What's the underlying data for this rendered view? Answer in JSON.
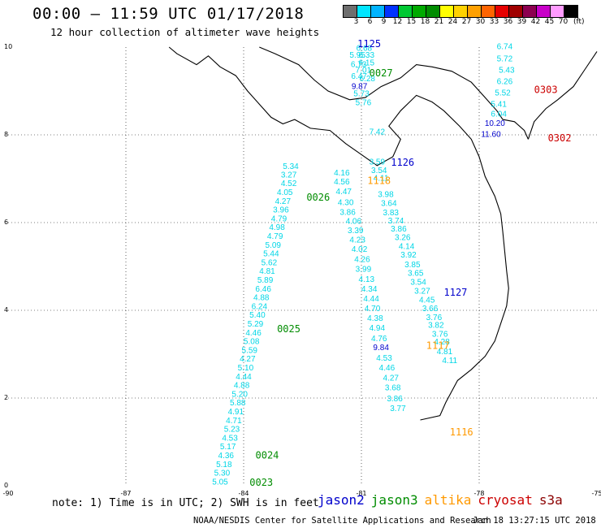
{
  "header": {
    "title": "00:00 — 11:59 UTC 01/17/2018",
    "subtitle": "12 hour collection of altimeter wave heights"
  },
  "scale": {
    "unit": "(ft)",
    "labels": [
      "3",
      "6",
      "9",
      "12",
      "15",
      "18",
      "21",
      "24",
      "27",
      "30",
      "33",
      "36",
      "39",
      "42",
      "45",
      "70"
    ],
    "colors": [
      "#6e6e6e",
      "#00e5ff",
      "#00b4ff",
      "#0032ff",
      "#00c832",
      "#00aa00",
      "#008c00",
      "#ffff00",
      "#ffd200",
      "#ffa000",
      "#ff6400",
      "#e60000",
      "#a00000",
      "#8c0050",
      "#c800c8",
      "#ff9bff",
      "#000000"
    ]
  },
  "axes": {
    "x_ticks": [
      "-90",
      "-87",
      "-84",
      "-81",
      "-78",
      "-75"
    ],
    "y_ticks": [
      "0",
      "2",
      "4",
      "6",
      "8",
      "10"
    ],
    "x_range": [
      -90,
      -75
    ],
    "y_range": [
      0,
      10
    ]
  },
  "tracks": [
    {
      "id": "1125",
      "sat": "jason2",
      "label_lon": -81.1,
      "label_lat": 10.0
    },
    {
      "id": "0027",
      "sat": "jason3",
      "label_lon": -80.8,
      "label_lat": 9.33
    },
    {
      "id": "0303",
      "sat": "cryosat",
      "label_lon": -76.6,
      "label_lat": 8.95
    },
    {
      "id": "0302",
      "sat": "cryosat",
      "label_lon": -76.25,
      "label_lat": 7.85
    },
    {
      "id": "1126",
      "sat": "jason2",
      "label_lon": -80.25,
      "label_lat": 7.3
    },
    {
      "id": "1118",
      "sat": "altika",
      "label_lon": -80.85,
      "label_lat": 6.88
    },
    {
      "id": "0026",
      "sat": "jason3",
      "label_lon": -82.4,
      "label_lat": 6.5
    },
    {
      "id": "1127",
      "sat": "jason2",
      "label_lon": -78.9,
      "label_lat": 4.33
    },
    {
      "id": "0025",
      "sat": "jason3",
      "label_lon": -83.15,
      "label_lat": 3.5
    },
    {
      "id": "1117",
      "sat": "altika",
      "label_lon": -79.35,
      "label_lat": 3.12
    },
    {
      "id": "1116",
      "sat": "altika",
      "label_lon": -78.75,
      "label_lat": 1.15
    },
    {
      "id": "0024",
      "sat": "jason3",
      "label_lon": -83.7,
      "label_lat": 0.62
    },
    {
      "id": "0023",
      "sat": "jason3",
      "label_lon": -83.85,
      "label_lat": 0.0
    }
  ],
  "observations": [
    {
      "v": "6.68",
      "lon": -80.93,
      "lat": 9.92
    },
    {
      "v": "5.95",
      "lon": -81.1,
      "lat": 9.76
    },
    {
      "v": "6.33",
      "lon": -80.87,
      "lat": 9.76
    },
    {
      "v": "6.73",
      "lon": -81.07,
      "lat": 9.55
    },
    {
      "v": "6.15",
      "lon": -80.87,
      "lat": 9.58
    },
    {
      "v": "7.01",
      "lon": -80.95,
      "lat": 9.42
    },
    {
      "v": "6.47",
      "lon": -81.06,
      "lat": 9.28
    },
    {
      "v": "6.28",
      "lon": -80.85,
      "lat": 9.22
    },
    {
      "v": "9.87",
      "lon": -81.05,
      "lat": 9.05
    },
    {
      "v": "5.73",
      "lon": -81.0,
      "lat": 8.88
    },
    {
      "v": "5.76",
      "lon": -80.95,
      "lat": 8.68
    },
    {
      "v": "7.42",
      "lon": -80.6,
      "lat": 8.01
    },
    {
      "v": "6.74",
      "lon": -77.35,
      "lat": 9.95
    },
    {
      "v": "5.72",
      "lon": -77.35,
      "lat": 9.68
    },
    {
      "v": "5.43",
      "lon": -77.3,
      "lat": 9.42
    },
    {
      "v": "6.26",
      "lon": -77.35,
      "lat": 9.16
    },
    {
      "v": "5.52",
      "lon": -77.4,
      "lat": 8.9
    },
    {
      "v": "5.41",
      "lon": -77.5,
      "lat": 8.64
    },
    {
      "v": "6.04",
      "lon": -77.5,
      "lat": 8.42
    },
    {
      "v": "10.20",
      "lon": -77.6,
      "lat": 8.2
    },
    {
      "v": "11.60",
      "lon": -77.7,
      "lat": 7.95
    },
    {
      "v": "3.59",
      "lon": -80.6,
      "lat": 7.32
    },
    {
      "v": "3.54",
      "lon": -80.55,
      "lat": 7.13
    },
    {
      "v": "4.11",
      "lon": -80.5,
      "lat": 6.95
    },
    {
      "v": "3.98",
      "lon": -80.38,
      "lat": 6.58
    },
    {
      "v": "3.64",
      "lon": -80.3,
      "lat": 6.38
    },
    {
      "v": "3.83",
      "lon": -80.25,
      "lat": 6.17
    },
    {
      "v": "3.74",
      "lon": -80.12,
      "lat": 5.98
    },
    {
      "v": "3.86",
      "lon": -80.05,
      "lat": 5.8
    },
    {
      "v": "3.26",
      "lon": -79.95,
      "lat": 5.6
    },
    {
      "v": "4.14",
      "lon": -79.85,
      "lat": 5.4
    },
    {
      "v": "3.92",
      "lon": -79.8,
      "lat": 5.2
    },
    {
      "v": "3.85",
      "lon": -79.7,
      "lat": 4.98
    },
    {
      "v": "3.65",
      "lon": -79.62,
      "lat": 4.79
    },
    {
      "v": "3.54",
      "lon": -79.55,
      "lat": 4.58
    },
    {
      "v": "3.27",
      "lon": -79.45,
      "lat": 4.38
    },
    {
      "v": "4.45",
      "lon": -79.33,
      "lat": 4.18
    },
    {
      "v": "3.66",
      "lon": -79.25,
      "lat": 3.98
    },
    {
      "v": "3.76",
      "lon": -79.15,
      "lat": 3.78
    },
    {
      "v": "3.82",
      "lon": -79.1,
      "lat": 3.6
    },
    {
      "v": "3.76",
      "lon": -79.0,
      "lat": 3.4
    },
    {
      "v": "4.28",
      "lon": -78.95,
      "lat": 3.22
    },
    {
      "v": "4.81",
      "lon": -78.88,
      "lat": 3.0
    },
    {
      "v": "4.11",
      "lon": -78.75,
      "lat": 2.8
    },
    {
      "v": "4.16",
      "lon": -81.5,
      "lat": 7.07
    },
    {
      "v": "4.56",
      "lon": -81.5,
      "lat": 6.87
    },
    {
      "v": "4.47",
      "lon": -81.45,
      "lat": 6.65
    },
    {
      "v": "4.30",
      "lon": -81.4,
      "lat": 6.4
    },
    {
      "v": "3.86",
      "lon": -81.35,
      "lat": 6.18
    },
    {
      "v": "4.06",
      "lon": -81.2,
      "lat": 5.97
    },
    {
      "v": "3.39",
      "lon": -81.15,
      "lat": 5.76
    },
    {
      "v": "4.23",
      "lon": -81.1,
      "lat": 5.55
    },
    {
      "v": "4.02",
      "lon": -81.05,
      "lat": 5.33
    },
    {
      "v": "4.26",
      "lon": -80.98,
      "lat": 5.1
    },
    {
      "v": "3.99",
      "lon": -80.95,
      "lat": 4.88
    },
    {
      "v": "4.13",
      "lon": -80.87,
      "lat": 4.65
    },
    {
      "v": "4.34",
      "lon": -80.8,
      "lat": 4.43
    },
    {
      "v": "4.44",
      "lon": -80.75,
      "lat": 4.2
    },
    {
      "v": "4.70",
      "lon": -80.72,
      "lat": 3.98
    },
    {
      "v": "4.38",
      "lon": -80.65,
      "lat": 3.76
    },
    {
      "v": "4.94",
      "lon": -80.6,
      "lat": 3.54
    },
    {
      "v": "4.76",
      "lon": -80.55,
      "lat": 3.3
    },
    {
      "v": "9.84",
      "lon": -80.5,
      "lat": 3.09
    },
    {
      "v": "4.53",
      "lon": -80.42,
      "lat": 2.85
    },
    {
      "v": "4.46",
      "lon": -80.35,
      "lat": 2.63
    },
    {
      "v": "4.27",
      "lon": -80.25,
      "lat": 2.4
    },
    {
      "v": "3.68",
      "lon": -80.2,
      "lat": 2.18
    },
    {
      "v": "3.86",
      "lon": -80.15,
      "lat": 1.93
    },
    {
      "v": "3.77",
      "lon": -80.07,
      "lat": 1.7
    },
    {
      "v": "5.34",
      "lon": -82.8,
      "lat": 7.22
    },
    {
      "v": "3.27",
      "lon": -82.85,
      "lat": 7.03
    },
    {
      "v": "4.52",
      "lon": -82.85,
      "lat": 6.83
    },
    {
      "v": "4.05",
      "lon": -82.95,
      "lat": 6.63
    },
    {
      "v": "4.27",
      "lon": -83.0,
      "lat": 6.43
    },
    {
      "v": "3.96",
      "lon": -83.05,
      "lat": 6.23
    },
    {
      "v": "4.79",
      "lon": -83.1,
      "lat": 6.03
    },
    {
      "v": "4.98",
      "lon": -83.15,
      "lat": 5.83
    },
    {
      "v": "4.79",
      "lon": -83.2,
      "lat": 5.63
    },
    {
      "v": "5.09",
      "lon": -83.25,
      "lat": 5.43
    },
    {
      "v": "5.44",
      "lon": -83.3,
      "lat": 5.23
    },
    {
      "v": "5.62",
      "lon": -83.35,
      "lat": 5.03
    },
    {
      "v": "4.81",
      "lon": -83.4,
      "lat": 4.83
    },
    {
      "v": "5.89",
      "lon": -83.45,
      "lat": 4.63
    },
    {
      "v": "6.46",
      "lon": -83.5,
      "lat": 4.43
    },
    {
      "v": "4.88",
      "lon": -83.55,
      "lat": 4.23
    },
    {
      "v": "6.24",
      "lon": -83.6,
      "lat": 4.03
    },
    {
      "v": "5.40",
      "lon": -83.65,
      "lat": 3.83
    },
    {
      "v": "5.29",
      "lon": -83.7,
      "lat": 3.63
    },
    {
      "v": "4.46",
      "lon": -83.75,
      "lat": 3.43
    },
    {
      "v": "5.08",
      "lon": -83.8,
      "lat": 3.23
    },
    {
      "v": "5.59",
      "lon": -83.85,
      "lat": 3.03
    },
    {
      "v": "4.27",
      "lon": -83.9,
      "lat": 2.83
    },
    {
      "v": "5.10",
      "lon": -83.95,
      "lat": 2.63
    },
    {
      "v": "4.44",
      "lon": -84.0,
      "lat": 2.43
    },
    {
      "v": "4.88",
      "lon": -84.05,
      "lat": 2.23
    },
    {
      "v": "5.20",
      "lon": -84.1,
      "lat": 2.03
    },
    {
      "v": "5.88",
      "lon": -84.15,
      "lat": 1.83
    },
    {
      "v": "4.91",
      "lon": -84.2,
      "lat": 1.63
    },
    {
      "v": "4.71",
      "lon": -84.25,
      "lat": 1.43
    },
    {
      "v": "5.23",
      "lon": -84.3,
      "lat": 1.23
    },
    {
      "v": "4.53",
      "lon": -84.35,
      "lat": 1.03
    },
    {
      "v": "5.17",
      "lon": -84.4,
      "lat": 0.83
    },
    {
      "v": "4.36",
      "lon": -84.45,
      "lat": 0.63
    },
    {
      "v": "5.18",
      "lon": -84.5,
      "lat": 0.43
    },
    {
      "v": "5.30",
      "lon": -84.55,
      "lat": 0.23
    },
    {
      "v": "5.05",
      "lon": -84.6,
      "lat": 0.03
    }
  ],
  "note": "note: 1) Time is in UTC; 2) SWH is in feet",
  "satellites": [
    {
      "name": "jason2",
      "color": "#0000cc"
    },
    {
      "name": "jason3",
      "color": "#008c00"
    },
    {
      "name": "altika",
      "color": "#ff9900"
    },
    {
      "name": "cryosat",
      "color": "#cc0000"
    },
    {
      "name": "s3a",
      "color": "#8b0000"
    }
  ],
  "credit": "NOAA/NESDIS Center for Satellite Applications and Research",
  "credit_time": "Jan 18 13:27:15 UTC 2018"
}
